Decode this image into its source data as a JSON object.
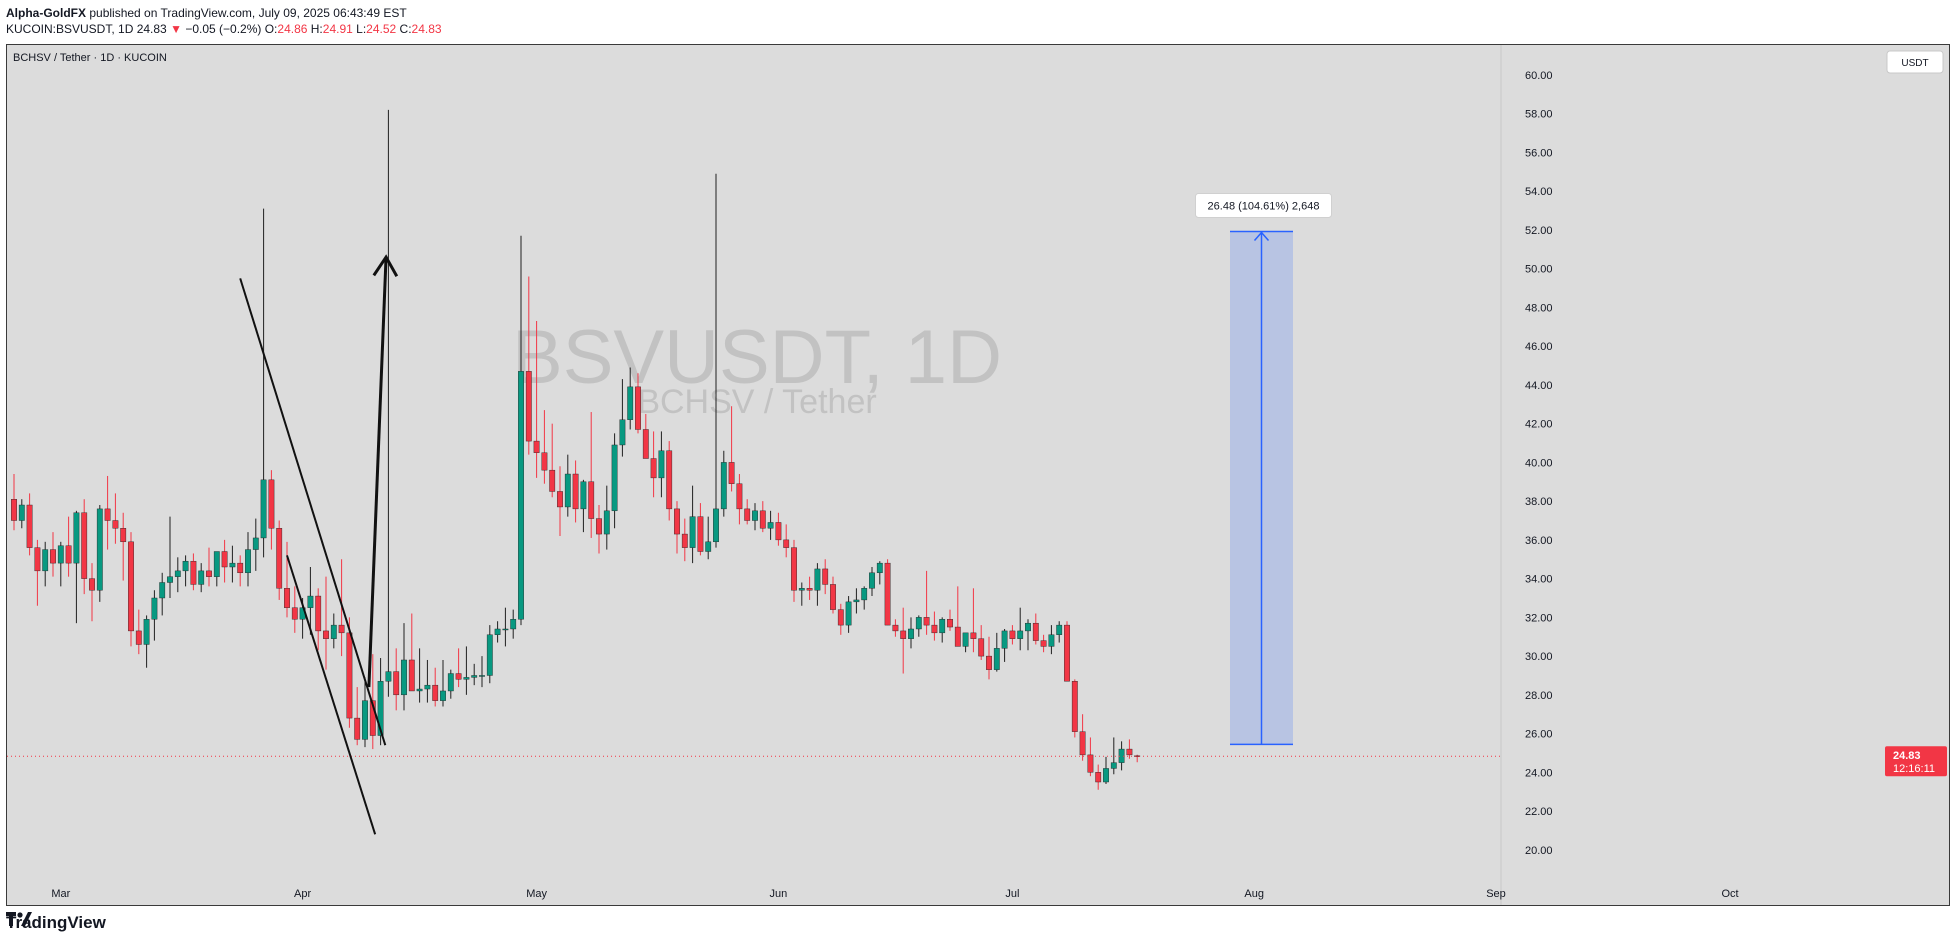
{
  "header": {
    "author": "Alpha-GoldFX",
    "published_text": "published on TradingView.com, July 09, 2025 06:43:49 EST",
    "symbol_line": "KUCOIN:BSVUSDT, 1D",
    "last": "24.83",
    "change": "−0.05 (−0.2%)",
    "open_label": "O:",
    "open": "24.86",
    "high_label": "H:",
    "high": "24.91",
    "low_label": "L:",
    "low": "24.52",
    "close_label": "C:",
    "close": "24.83"
  },
  "chart_legend": "BCHSV / Tether · 1D · KUCOIN",
  "currency_button": "USDT",
  "watermark": {
    "symbol": "BSVUSDT, 1D",
    "name": "BCHSV / Tether"
  },
  "measure_label": "26.48 (104.61%) 2,648",
  "price_tag": {
    "price": "24.83",
    "countdown": "12:16:11"
  },
  "footer": {
    "brand": "TradingView"
  },
  "colors": {
    "up": "#089981",
    "down": "#f23645",
    "measure": "#2962ff",
    "background": "#dcdcdc"
  },
  "chart_data": {
    "type": "candlestick",
    "y_axis": {
      "ylim": [
        19.2,
        61.3
      ],
      "ticks": [
        "20.00",
        "22.00",
        "24.00",
        "26.00",
        "28.00",
        "30.00",
        "32.00",
        "34.00",
        "36.00",
        "38.00",
        "40.00",
        "42.00",
        "44.00",
        "46.00",
        "48.00",
        "50.00",
        "52.00",
        "54.00",
        "56.00",
        "58.00",
        "60.00"
      ]
    },
    "x_axis": {
      "ticks": [
        {
          "label": "Mar",
          "index": 6
        },
        {
          "label": "Apr",
          "index": 37
        },
        {
          "label": "May",
          "index": 67
        },
        {
          "label": "Jun",
          "index": 98
        },
        {
          "label": "Jul",
          "index": 128
        },
        {
          "label": "Aug",
          "index": 159
        },
        {
          "label": "Sep",
          "index": 190
        },
        {
          "label": "Oct",
          "index": 220
        }
      ]
    },
    "candles": [
      [
        38.1,
        39.4,
        36.5,
        37.0
      ],
      [
        37.0,
        38.1,
        36.6,
        37.8
      ],
      [
        37.8,
        38.4,
        35.2,
        35.6
      ],
      [
        35.6,
        36.0,
        32.6,
        34.4
      ],
      [
        34.4,
        35.9,
        33.6,
        35.5
      ],
      [
        35.5,
        36.4,
        34.1,
        34.8
      ],
      [
        34.8,
        35.9,
        33.6,
        35.7
      ],
      [
        35.7,
        37.2,
        34.1,
        34.8
      ],
      [
        34.8,
        37.5,
        31.7,
        37.4
      ],
      [
        37.4,
        38.1,
        33.2,
        34.0
      ],
      [
        34.0,
        34.8,
        31.8,
        33.4
      ],
      [
        33.4,
        37.8,
        32.8,
        37.6
      ],
      [
        37.6,
        39.3,
        35.5,
        37.0
      ],
      [
        37.0,
        38.4,
        35.8,
        36.6
      ],
      [
        36.6,
        37.4,
        33.9,
        35.9
      ],
      [
        35.9,
        36.4,
        30.5,
        31.3
      ],
      [
        31.3,
        32.4,
        30.1,
        30.6
      ],
      [
        30.6,
        32.1,
        29.4,
        31.9
      ],
      [
        31.9,
        33.4,
        30.8,
        33.0
      ],
      [
        33.0,
        34.3,
        32.1,
        33.8
      ],
      [
        33.8,
        37.2,
        33.0,
        34.1
      ],
      [
        34.1,
        35.1,
        33.3,
        34.4
      ],
      [
        34.4,
        35.2,
        33.6,
        34.9
      ],
      [
        34.9,
        35.3,
        33.4,
        33.7
      ],
      [
        33.7,
        34.8,
        33.3,
        34.4
      ],
      [
        34.4,
        35.6,
        33.6,
        34.1
      ],
      [
        34.1,
        35.3,
        33.6,
        35.4
      ],
      [
        35.4,
        36.0,
        33.8,
        34.6
      ],
      [
        34.6,
        35.7,
        33.8,
        34.8
      ],
      [
        34.8,
        35.2,
        33.6,
        34.3
      ],
      [
        34.3,
        36.4,
        33.6,
        35.5
      ],
      [
        35.5,
        37.1,
        34.4,
        36.1
      ],
      [
        36.1,
        53.1,
        35.1,
        39.1
      ],
      [
        39.1,
        39.6,
        35.5,
        36.6
      ],
      [
        36.6,
        37.0,
        32.9,
        33.5
      ],
      [
        33.5,
        35.9,
        32.0,
        32.5
      ],
      [
        32.5,
        33.6,
        31.2,
        31.9
      ],
      [
        31.9,
        33.0,
        30.9,
        32.5
      ],
      [
        32.5,
        34.6,
        31.1,
        33.1
      ],
      [
        33.1,
        33.5,
        30.3,
        31.3
      ],
      [
        31.3,
        34.1,
        29.3,
        30.9
      ],
      [
        30.9,
        32.2,
        30.4,
        31.6
      ],
      [
        31.6,
        35.0,
        30.0,
        31.2
      ],
      [
        31.2,
        32.0,
        26.3,
        26.8
      ],
      [
        26.8,
        28.4,
        25.4,
        25.7
      ],
      [
        25.7,
        28.9,
        25.3,
        27.7
      ],
      [
        27.7,
        30.1,
        25.2,
        25.9
      ],
      [
        25.9,
        29.9,
        25.4,
        28.7
      ],
      [
        28.7,
        58.2,
        27.9,
        29.2
      ],
      [
        29.2,
        30.4,
        27.2,
        28.0
      ],
      [
        28.0,
        31.7,
        27.2,
        29.8
      ],
      [
        29.8,
        32.2,
        28.2,
        28.2
      ],
      [
        28.2,
        30.4,
        27.6,
        28.3
      ],
      [
        28.3,
        29.8,
        27.6,
        28.5
      ],
      [
        28.5,
        29.4,
        27.4,
        27.7
      ],
      [
        27.7,
        29.8,
        27.4,
        28.2
      ],
      [
        28.2,
        29.3,
        27.8,
        29.1
      ],
      [
        29.1,
        30.4,
        28.4,
        28.8
      ],
      [
        28.8,
        30.5,
        28.0,
        28.9
      ],
      [
        28.9,
        29.6,
        28.5,
        29.0
      ],
      [
        29.0,
        30.0,
        28.4,
        29.0
      ],
      [
        29.0,
        31.6,
        28.6,
        31.1
      ],
      [
        31.1,
        31.8,
        30.7,
        31.4
      ],
      [
        31.4,
        32.5,
        30.5,
        31.4
      ],
      [
        31.4,
        32.4,
        30.9,
        31.9
      ],
      [
        31.9,
        51.7,
        31.6,
        44.7
      ],
      [
        44.7,
        49.6,
        40.4,
        41.1
      ],
      [
        41.1,
        47.3,
        39.2,
        40.5
      ],
      [
        40.5,
        42.7,
        38.9,
        39.6
      ],
      [
        39.6,
        42.0,
        38.2,
        38.5
      ],
      [
        38.5,
        39.8,
        36.2,
        37.7
      ],
      [
        37.7,
        40.4,
        37.2,
        39.4
      ],
      [
        39.4,
        40.1,
        36.9,
        37.6
      ],
      [
        37.6,
        39.1,
        36.4,
        39.0
      ],
      [
        39.0,
        42.6,
        36.1,
        37.1
      ],
      [
        37.1,
        37.8,
        35.3,
        36.3
      ],
      [
        36.3,
        38.8,
        35.5,
        37.5
      ],
      [
        37.5,
        41.5,
        36.6,
        40.9
      ],
      [
        40.9,
        44.3,
        40.3,
        42.2
      ],
      [
        42.2,
        44.9,
        41.7,
        43.9
      ],
      [
        43.9,
        44.6,
        41.5,
        41.7
      ],
      [
        41.7,
        42.5,
        40.2,
        40.2
      ],
      [
        40.2,
        41.6,
        38.2,
        39.2
      ],
      [
        39.2,
        41.6,
        38.2,
        40.6
      ],
      [
        40.6,
        41.1,
        37.0,
        37.6
      ],
      [
        37.6,
        38.0,
        35.3,
        36.3
      ],
      [
        36.3,
        37.1,
        34.9,
        35.6
      ],
      [
        35.6,
        38.8,
        34.8,
        37.2
      ],
      [
        37.2,
        37.9,
        35.2,
        35.4
      ],
      [
        35.4,
        37.2,
        35.0,
        35.9
      ],
      [
        35.9,
        54.9,
        35.6,
        37.6
      ],
      [
        37.6,
        40.6,
        37.2,
        40.0
      ],
      [
        40.0,
        42.9,
        38.5,
        38.9
      ],
      [
        38.9,
        39.4,
        36.8,
        37.6
      ],
      [
        37.6,
        38.1,
        36.8,
        37.0
      ],
      [
        37.0,
        37.9,
        36.5,
        37.5
      ],
      [
        37.5,
        38.0,
        36.4,
        36.6
      ],
      [
        36.6,
        37.5,
        36.0,
        36.9
      ],
      [
        36.9,
        37.4,
        35.7,
        36.0
      ],
      [
        36.0,
        36.8,
        35.1,
        35.6
      ],
      [
        35.6,
        36.0,
        32.8,
        33.4
      ],
      [
        33.4,
        33.8,
        32.6,
        33.5
      ],
      [
        33.5,
        34.1,
        32.9,
        33.4
      ],
      [
        33.4,
        34.8,
        32.6,
        34.5
      ],
      [
        34.5,
        35.0,
        33.2,
        33.7
      ],
      [
        33.7,
        34.1,
        32.2,
        32.4
      ],
      [
        32.4,
        32.7,
        31.1,
        31.6
      ],
      [
        31.6,
        33.1,
        31.2,
        32.8
      ],
      [
        32.8,
        33.5,
        32.2,
        32.9
      ],
      [
        32.9,
        33.6,
        32.4,
        33.5
      ],
      [
        33.5,
        34.6,
        33.1,
        34.3
      ],
      [
        34.3,
        34.9,
        33.7,
        34.8
      ],
      [
        34.8,
        35.0,
        31.6,
        31.6
      ],
      [
        31.6,
        31.9,
        31.0,
        31.3
      ],
      [
        31.3,
        32.5,
        29.1,
        30.9
      ],
      [
        30.9,
        32.0,
        30.4,
        31.4
      ],
      [
        31.4,
        32.1,
        31.0,
        32.0
      ],
      [
        32.0,
        34.4,
        31.1,
        31.6
      ],
      [
        31.6,
        32.3,
        30.8,
        31.2
      ],
      [
        31.2,
        32.0,
        30.7,
        31.9
      ],
      [
        31.9,
        32.4,
        31.3,
        31.5
      ],
      [
        31.5,
        33.6,
        30.5,
        30.5
      ],
      [
        30.5,
        31.1,
        30.2,
        31.2
      ],
      [
        31.2,
        33.5,
        30.2,
        30.9
      ],
      [
        30.9,
        31.6,
        29.8,
        30.0
      ],
      [
        30.0,
        31.0,
        28.8,
        29.3
      ],
      [
        29.3,
        31.2,
        29.2,
        30.4
      ],
      [
        30.4,
        31.4,
        29.7,
        31.3
      ],
      [
        31.3,
        31.6,
        30.6,
        30.9
      ],
      [
        30.9,
        32.5,
        30.3,
        31.3
      ],
      [
        31.3,
        31.9,
        30.3,
        31.7
      ],
      [
        31.7,
        32.2,
        30.6,
        30.8
      ],
      [
        30.8,
        31.1,
        30.2,
        30.5
      ],
      [
        30.5,
        31.6,
        30.1,
        31.1
      ],
      [
        31.1,
        31.8,
        30.7,
        31.6
      ],
      [
        31.6,
        31.8,
        28.7,
        28.7
      ],
      [
        28.7,
        28.8,
        25.8,
        26.1
      ],
      [
        26.1,
        27.0,
        24.6,
        24.9
      ],
      [
        24.9,
        25.8,
        23.8,
        24.0
      ],
      [
        24.0,
        24.4,
        23.1,
        23.5
      ],
      [
        23.5,
        24.8,
        23.4,
        24.2
      ],
      [
        24.2,
        25.8,
        23.9,
        24.5
      ],
      [
        24.5,
        25.6,
        24.1,
        25.2
      ],
      [
        25.2,
        25.7,
        24.7,
        24.9
      ],
      [
        24.86,
        24.91,
        24.52,
        24.83
      ]
    ],
    "annotations": {
      "upper_line": [
        [
          29,
          49.5
        ],
        [
          47.6,
          25.4
        ]
      ],
      "lower_line": [
        [
          35,
          35.2
        ],
        [
          46.3,
          20.8
        ]
      ],
      "arrow": [
        [
          45.5,
          28.4
        ],
        [
          47.7,
          50.6
        ]
      ],
      "measure_range": {
        "from": 25.44,
        "to": 51.92
      }
    }
  }
}
